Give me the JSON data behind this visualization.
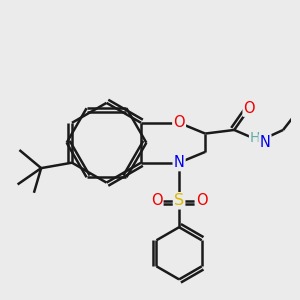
{
  "background_color": "#ebebeb",
  "atom_colors": {
    "C": "#1a1a1a",
    "H": "#5faaaa",
    "N": "#0000ee",
    "O": "#ee0000",
    "S": "#ddbb00"
  },
  "bond_color": "#1a1a1a",
  "bond_width": 1.8,
  "font_size": 10.5
}
